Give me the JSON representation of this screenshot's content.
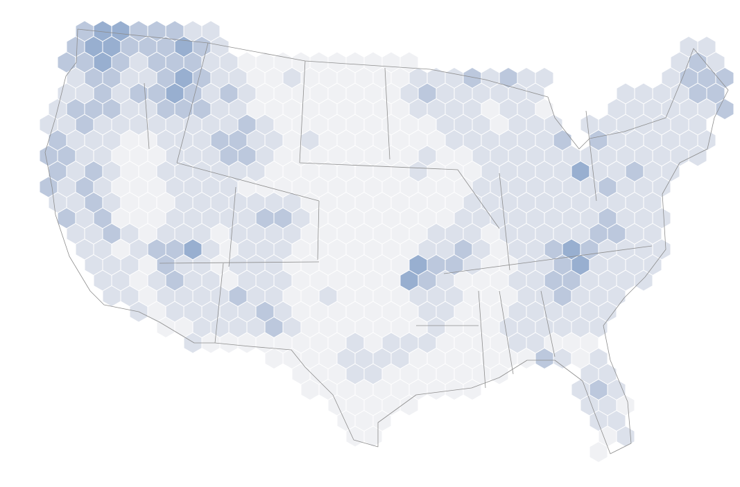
{
  "map": {
    "colors": [
      "#f0f1f4",
      "#dce1eb",
      "#bcc8dd",
      "#98afd0",
      "#7195c1"
    ],
    "hex_values": [
      [
        null,
        null,
        3,
        4,
        4,
        3,
        3,
        3,
        2,
        2,
        null,
        null,
        null,
        null,
        null,
        null,
        null,
        null,
        null,
        null,
        null,
        null,
        null,
        null,
        null,
        null,
        null,
        null,
        null,
        null,
        null,
        null,
        null,
        null,
        null,
        null,
        null,
        null
      ],
      [
        null,
        3,
        4,
        4,
        3,
        3,
        3,
        4,
        3,
        2,
        null,
        null,
        null,
        null,
        null,
        null,
        null,
        null,
        null,
        null,
        null,
        null,
        null,
        null,
        null,
        null,
        null,
        null,
        null,
        null,
        null,
        null,
        null,
        null,
        null,
        2,
        2,
        null
      ],
      [
        null,
        3,
        3,
        4,
        3,
        2,
        3,
        3,
        3,
        2,
        2,
        1,
        1,
        1,
        1,
        1,
        1,
        1,
        1,
        1,
        1,
        null,
        null,
        null,
        null,
        null,
        null,
        null,
        null,
        null,
        null,
        null,
        null,
        null,
        null,
        2,
        3,
        2
      ],
      [
        null,
        2,
        3,
        3,
        2,
        2,
        3,
        4,
        3,
        2,
        2,
        1,
        1,
        2,
        1,
        1,
        1,
        1,
        1,
        1,
        2,
        2,
        2,
        3,
        2,
        3,
        2,
        2,
        null,
        null,
        null,
        null,
        null,
        null,
        2,
        3,
        3,
        3
      ],
      [
        null,
        2,
        2,
        3,
        2,
        3,
        3,
        4,
        3,
        2,
        3,
        2,
        1,
        1,
        1,
        1,
        1,
        1,
        1,
        1,
        2,
        3,
        2,
        2,
        2,
        2,
        2,
        2,
        null,
        null,
        null,
        null,
        2,
        2,
        2,
        2,
        3,
        3
      ],
      [
        2,
        3,
        3,
        3,
        2,
        2,
        3,
        3,
        3,
        2,
        2,
        1,
        1,
        1,
        1,
        1,
        1,
        1,
        1,
        1,
        2,
        2,
        2,
        2,
        1,
        2,
        2,
        1,
        null,
        null,
        null,
        2,
        2,
        2,
        2,
        2,
        2,
        3
      ],
      [
        2,
        2,
        3,
        2,
        2,
        2,
        2,
        2,
        2,
        2,
        2,
        3,
        2,
        1,
        1,
        1,
        1,
        1,
        1,
        1,
        1,
        1,
        2,
        2,
        2,
        1,
        2,
        2,
        2,
        null,
        2,
        2,
        2,
        2,
        2,
        2,
        2,
        null
      ],
      [
        3,
        2,
        2,
        2,
        1,
        1,
        2,
        2,
        2,
        3,
        3,
        2,
        2,
        1,
        2,
        1,
        1,
        1,
        1,
        1,
        1,
        1,
        2,
        2,
        2,
        2,
        2,
        2,
        3,
        null,
        3,
        2,
        2,
        2,
        2,
        2,
        2,
        null
      ],
      [
        3,
        3,
        2,
        2,
        1,
        1,
        1,
        2,
        2,
        2,
        3,
        3,
        2,
        1,
        1,
        1,
        1,
        1,
        1,
        1,
        1,
        2,
        1,
        1,
        2,
        2,
        2,
        2,
        2,
        2,
        2,
        2,
        2,
        2,
        2,
        2,
        2,
        null
      ],
      [
        3,
        2,
        3,
        2,
        1,
        1,
        2,
        2,
        2,
        2,
        2,
        2,
        1,
        1,
        1,
        1,
        1,
        1,
        1,
        1,
        2,
        1,
        1,
        1,
        2,
        2,
        2,
        2,
        2,
        4,
        2,
        2,
        3,
        2,
        2,
        null,
        null,
        null
      ],
      [
        3,
        2,
        3,
        2,
        1,
        1,
        1,
        2,
        2,
        2,
        2,
        1,
        1,
        1,
        1,
        1,
        1,
        1,
        1,
        1,
        1,
        1,
        1,
        1,
        2,
        2,
        2,
        2,
        2,
        2,
        2,
        3,
        2,
        2,
        2,
        null,
        null,
        null
      ],
      [
        2,
        2,
        3,
        2,
        1,
        1,
        1,
        2,
        2,
        2,
        2,
        2,
        2,
        2,
        1,
        1,
        1,
        1,
        1,
        1,
        1,
        1,
        1,
        2,
        2,
        2,
        2,
        2,
        2,
        2,
        2,
        2,
        2,
        2,
        null,
        null,
        null,
        null
      ],
      [
        null,
        3,
        2,
        3,
        1,
        1,
        1,
        2,
        2,
        2,
        2,
        2,
        3,
        3,
        2,
        1,
        1,
        1,
        1,
        1,
        1,
        1,
        1,
        2,
        2,
        2,
        2,
        2,
        2,
        2,
        2,
        3,
        2,
        2,
        2,
        null,
        null,
        null
      ],
      [
        null,
        2,
        2,
        3,
        2,
        1,
        2,
        2,
        2,
        1,
        2,
        2,
        2,
        2,
        1,
        1,
        1,
        1,
        1,
        1,
        1,
        2,
        2,
        2,
        1,
        2,
        2,
        2,
        2,
        2,
        3,
        3,
        2,
        2,
        null,
        null,
        null,
        null
      ],
      [
        null,
        null,
        2,
        2,
        1,
        2,
        3,
        3,
        4,
        2,
        1,
        2,
        2,
        2,
        1,
        1,
        1,
        1,
        1,
        1,
        1,
        2,
        2,
        3,
        2,
        1,
        2,
        2,
        3,
        4,
        3,
        2,
        2,
        2,
        2,
        null,
        null,
        null
      ],
      [
        null,
        null,
        2,
        2,
        2,
        1,
        3,
        2,
        2,
        1,
        2,
        2,
        2,
        1,
        1,
        1,
        1,
        1,
        1,
        1,
        4,
        3,
        3,
        2,
        1,
        1,
        2,
        2,
        3,
        4,
        2,
        2,
        2,
        2,
        null,
        null,
        null,
        null
      ],
      [
        null,
        null,
        null,
        2,
        2,
        1,
        2,
        3,
        2,
        2,
        1,
        2,
        2,
        2,
        1,
        1,
        1,
        1,
        1,
        1,
        4,
        3,
        2,
        1,
        1,
        1,
        2,
        2,
        3,
        3,
        2,
        2,
        2,
        2,
        null,
        null,
        null,
        null
      ],
      [
        null,
        null,
        null,
        2,
        2,
        1,
        2,
        2,
        2,
        2,
        3,
        2,
        2,
        1,
        1,
        2,
        1,
        1,
        1,
        1,
        2,
        2,
        2,
        1,
        1,
        1,
        2,
        2,
        3,
        2,
        2,
        2,
        null,
        null,
        null,
        null,
        null,
        null
      ],
      [
        null,
        null,
        null,
        null,
        null,
        2,
        1,
        2,
        2,
        2,
        2,
        2,
        3,
        2,
        1,
        1,
        1,
        1,
        1,
        1,
        1,
        2,
        2,
        1,
        1,
        1,
        2,
        2,
        2,
        2,
        2,
        2,
        null,
        null,
        null,
        null,
        null,
        null
      ],
      [
        null,
        null,
        null,
        null,
        null,
        null,
        1,
        1,
        2,
        2,
        2,
        2,
        3,
        2,
        1,
        1,
        1,
        1,
        1,
        1,
        1,
        2,
        1,
        1,
        1,
        2,
        2,
        2,
        2,
        2,
        2,
        null,
        null,
        null,
        null,
        null,
        null,
        null
      ],
      [
        null,
        null,
        null,
        null,
        null,
        null,
        null,
        null,
        2,
        1,
        1,
        1,
        1,
        1,
        1,
        1,
        1,
        2,
        1,
        2,
        2,
        2,
        1,
        1,
        1,
        1,
        2,
        2,
        1,
        1,
        1,
        null,
        null,
        null,
        null,
        null,
        null,
        null
      ],
      [
        null,
        null,
        null,
        null,
        null,
        null,
        null,
        null,
        null,
        null,
        null,
        null,
        1,
        1,
        1,
        1,
        2,
        2,
        2,
        2,
        1,
        1,
        1,
        1,
        1,
        1,
        1,
        3,
        2,
        1,
        2,
        null,
        null,
        null,
        null,
        null,
        null,
        null
      ],
      [
        null,
        null,
        null,
        null,
        null,
        null,
        null,
        null,
        null,
        null,
        null,
        null,
        null,
        null,
        1,
        1,
        1,
        2,
        2,
        1,
        1,
        1,
        1,
        1,
        1,
        1,
        null,
        null,
        null,
        null,
        2,
        2,
        null,
        null,
        null,
        null,
        null,
        null
      ],
      [
        null,
        null,
        null,
        null,
        null,
        null,
        null,
        null,
        null,
        null,
        null,
        null,
        null,
        null,
        1,
        1,
        1,
        1,
        1,
        1,
        1,
        1,
        1,
        1,
        null,
        null,
        null,
        null,
        null,
        2,
        3,
        2,
        null,
        null,
        null,
        null,
        null,
        null
      ],
      [
        null,
        null,
        null,
        null,
        null,
        null,
        null,
        null,
        null,
        null,
        null,
        null,
        null,
        null,
        null,
        null,
        1,
        1,
        1,
        1,
        1,
        null,
        null,
        null,
        null,
        null,
        null,
        null,
        null,
        null,
        2,
        2,
        1,
        null,
        null,
        null,
        null,
        null
      ],
      [
        null,
        null,
        null,
        null,
        null,
        null,
        null,
        null,
        null,
        null,
        null,
        null,
        null,
        null,
        null,
        null,
        1,
        1,
        1,
        null,
        null,
        null,
        null,
        null,
        null,
        null,
        null,
        null,
        null,
        null,
        2,
        2,
        null,
        null,
        null,
        null,
        null,
        null
      ],
      [
        null,
        null,
        null,
        null,
        null,
        null,
        null,
        null,
        null,
        null,
        null,
        null,
        null,
        null,
        null,
        null,
        null,
        1,
        1,
        null,
        null,
        null,
        null,
        null,
        null,
        null,
        null,
        null,
        null,
        null,
        null,
        1,
        2,
        null,
        null,
        null,
        null,
        null
      ],
      [
        null,
        null,
        null,
        null,
        null,
        null,
        null,
        null,
        null,
        null,
        null,
        null,
        null,
        null,
        null,
        null,
        null,
        null,
        null,
        null,
        null,
        null,
        null,
        null,
        null,
        null,
        null,
        null,
        null,
        null,
        1,
        null,
        null,
        null,
        null,
        null,
        null,
        null
      ]
    ]
  }
}
